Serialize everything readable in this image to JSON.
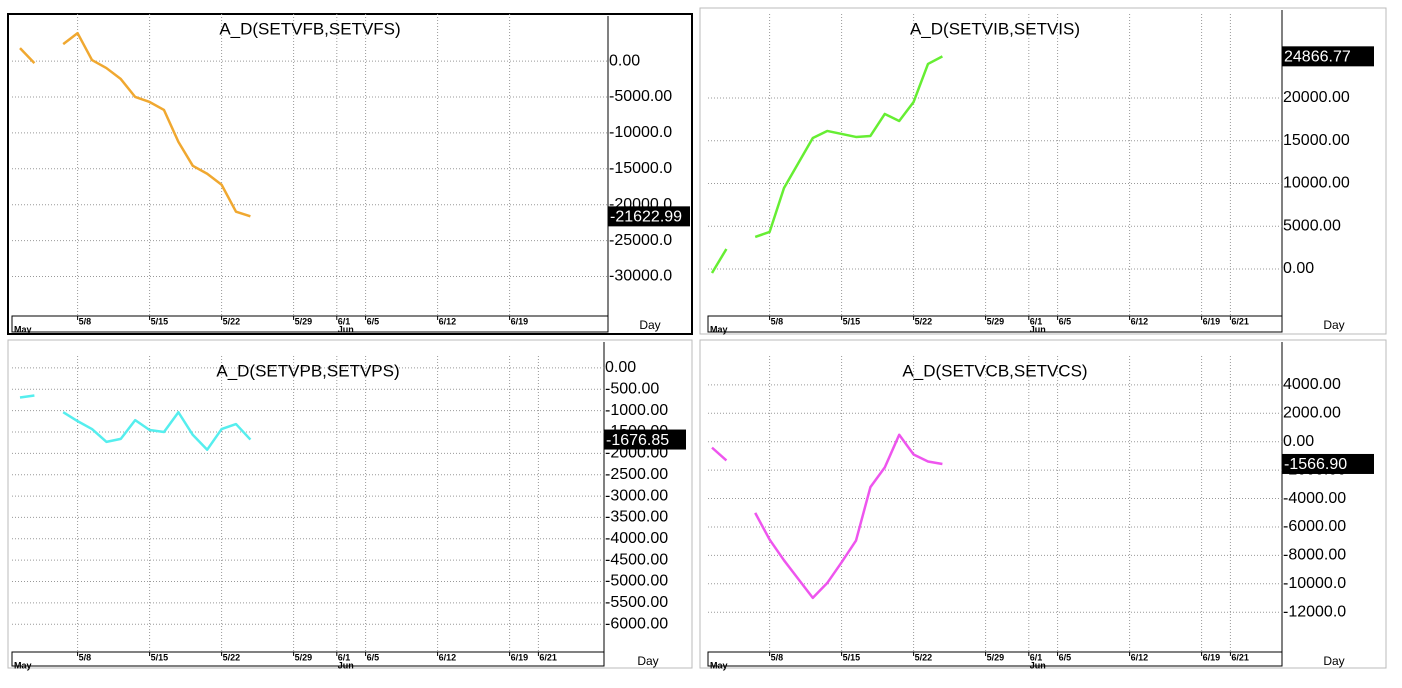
{
  "chart_data": [
    {
      "type": "line",
      "title": "A_D(SETVFB,SETVFS)",
      "xlabel": "Day",
      "months": [
        "May",
        "Jun"
      ],
      "color": "#f0a830",
      "grid": true,
      "categories": [
        null,
        null,
        null,
        null,
        "5/8",
        null,
        null,
        null,
        null,
        "5/15",
        null,
        null,
        null,
        null,
        "5/22",
        null,
        null,
        null,
        null,
        "5/29",
        null,
        null,
        "6/1",
        null,
        "6/5",
        null,
        null,
        null,
        null,
        "6/12",
        null,
        null,
        null,
        null,
        "6/19",
        null,
        null,
        null,
        null,
        null,
        null
      ],
      "values": [
        1806,
        -278,
        null,
        2361,
        3889,
        139,
        -972,
        -2500,
        -5000,
        -5694,
        -6806,
        -11250,
        -14583,
        -15694,
        -17222,
        -20972,
        -21622.99,
        null,
        null,
        null,
        null,
        null,
        null,
        null,
        null,
        null,
        null,
        null,
        null,
        null,
        null,
        null,
        null,
        null,
        null,
        null,
        null,
        null,
        null,
        null,
        null
      ],
      "ylim": [
        -35500,
        6000
      ],
      "yticks": [
        {
          "value": 0,
          "label": "0.00"
        },
        {
          "value": -5000,
          "label": "-5000.00"
        },
        {
          "value": -10000,
          "label": "-10000.0"
        },
        {
          "value": -15000,
          "label": "-15000.0"
        },
        {
          "value": -20000,
          "label": "-20000.0"
        },
        {
          "value": -25000,
          "label": "-25000.0"
        },
        {
          "value": -30000,
          "label": "-30000.0"
        }
      ]
    },
    {
      "type": "line",
      "title": "A_D(SETVIB,SETVIS)",
      "xlabel": "Day",
      "months": [
        "May",
        "Jun"
      ],
      "color": "#66ee33",
      "grid": true,
      "categories": [
        null,
        null,
        null,
        null,
        "5/8",
        null,
        null,
        null,
        null,
        "5/15",
        null,
        null,
        null,
        null,
        "5/22",
        null,
        null,
        null,
        null,
        "5/29",
        null,
        null,
        "6/1",
        null,
        "6/5",
        null,
        null,
        null,
        null,
        "6/12",
        null,
        null,
        null,
        null,
        "6/19",
        null,
        "6/21",
        null,
        null,
        null,
        null
      ],
      "values": [
        -468,
        2339,
        null,
        3743,
        4327,
        9474,
        12398,
        15322,
        16140,
        15789,
        15439,
        15556,
        18129,
        17310,
        19532,
        23977,
        24866.77,
        null,
        null,
        null,
        null,
        null,
        null,
        null,
        null,
        null,
        null,
        null,
        null,
        null,
        null,
        null,
        null,
        null,
        null,
        null,
        null,
        null,
        null,
        null,
        null
      ],
      "ylim": [
        -5500,
        29350
      ],
      "yticks": [
        {
          "value": 0,
          "label": "0.00"
        },
        {
          "value": 5000,
          "label": "5000.00"
        },
        {
          "value": 10000,
          "label": "10000.00"
        },
        {
          "value": 15000,
          "label": "15000.00"
        },
        {
          "value": 20000,
          "label": "20000.00"
        }
      ]
    },
    {
      "type": "line",
      "title": "A_D(SETVPB,SETVPS)",
      "xlabel": "Day",
      "months": [
        "May",
        "Jun"
      ],
      "color": "#55eeee",
      "grid": true,
      "categories": [
        null,
        null,
        null,
        null,
        "5/8",
        null,
        null,
        null,
        null,
        "5/15",
        null,
        null,
        null,
        null,
        "5/22",
        null,
        null,
        null,
        null,
        "5/29",
        null,
        null,
        "6/1",
        null,
        "6/5",
        null,
        null,
        null,
        null,
        "6/12",
        null,
        null,
        null,
        null,
        "6/19",
        null,
        "6/21",
        null,
        null,
        null,
        null
      ],
      "values": [
        -692,
        -646,
        null,
        -1038,
        -1246,
        -1431,
        -1731,
        -1662,
        -1223,
        -1454,
        -1500,
        -1038,
        -1569,
        -1915,
        -1431,
        -1315,
        -1676.85,
        null,
        null,
        null,
        null,
        null,
        null,
        null,
        null,
        null,
        null,
        null,
        null,
        null,
        null,
        null,
        null,
        null,
        null,
        null,
        null,
        null,
        null,
        null,
        null
      ],
      "ylim": [
        -6650,
        185
      ],
      "yticks": [
        {
          "value": 0,
          "label": "0.00"
        },
        {
          "value": -500,
          "label": "-500.00"
        },
        {
          "value": -1000,
          "label": "-1000.00"
        },
        {
          "value": -1500,
          "label": "-1500.00"
        },
        {
          "value": -2000,
          "label": "-2000.00"
        },
        {
          "value": -2500,
          "label": "-2500.00"
        },
        {
          "value": -3000,
          "label": "-3000.00"
        },
        {
          "value": -3500,
          "label": "-3500.00"
        },
        {
          "value": -4000,
          "label": "-4000.00"
        },
        {
          "value": -4500,
          "label": "-4500.00"
        },
        {
          "value": -5000,
          "label": "-5000.00"
        },
        {
          "value": -5500,
          "label": "-5500.00"
        },
        {
          "value": -6000,
          "label": "-6000.00"
        }
      ]
    },
    {
      "type": "line",
      "title": "A_D(SETVCB,SETVCS)",
      "xlabel": "Day",
      "months": [
        "May",
        "Jun"
      ],
      "color": "#ee55ee",
      "grid": true,
      "categories": [
        null,
        null,
        null,
        null,
        "5/8",
        null,
        null,
        null,
        null,
        "5/15",
        null,
        null,
        null,
        null,
        "5/22",
        null,
        null,
        null,
        null,
        "5/29",
        null,
        null,
        "6/1",
        null,
        "6/5",
        null,
        null,
        null,
        null,
        "6/12",
        null,
        null,
        null,
        null,
        "6/19",
        null,
        "6/21",
        null,
        null,
        null,
        null
      ],
      "values": [
        -417,
        -1322,
        null,
        -5009,
        -6887,
        -8348,
        -9670,
        -10991,
        -9948,
        -8487,
        -6957,
        -3200,
        -1809,
        487,
        -904,
        -1391,
        -1566.9,
        null,
        null,
        null,
        null,
        null,
        null,
        null,
        null,
        null,
        null,
        null,
        null,
        null,
        null,
        null,
        null,
        null,
        null,
        null,
        null,
        null,
        null,
        null,
        null
      ],
      "value_labels": [
        null,
        null,
        null,
        null,
        null,
        null,
        null,
        null,
        null,
        null,
        null,
        null,
        null,
        null,
        null,
        null,
        "-1566.90",
        null,
        null,
        null,
        null,
        null,
        null,
        null,
        null,
        null,
        null,
        null,
        null,
        null,
        null,
        null,
        null,
        null,
        null,
        null,
        null,
        null,
        null,
        null,
        null
      ],
      "ylim": [
        -14800,
        5750
      ],
      "yticks": [
        {
          "value": 4000,
          "label": "4000.00"
        },
        {
          "value": 2000,
          "label": "2000.00"
        },
        {
          "value": 0,
          "label": "0.00"
        },
        {
          "value": -2000,
          "label": "-2000.00"
        },
        {
          "value": -4000,
          "label": "-4000.00"
        },
        {
          "value": -6000,
          "label": "-6000.00"
        },
        {
          "value": -8000,
          "label": "-8000.00"
        },
        {
          "value": -10000,
          "label": "-10000.0"
        },
        {
          "value": -12000,
          "label": "-12000.0"
        }
      ]
    }
  ]
}
